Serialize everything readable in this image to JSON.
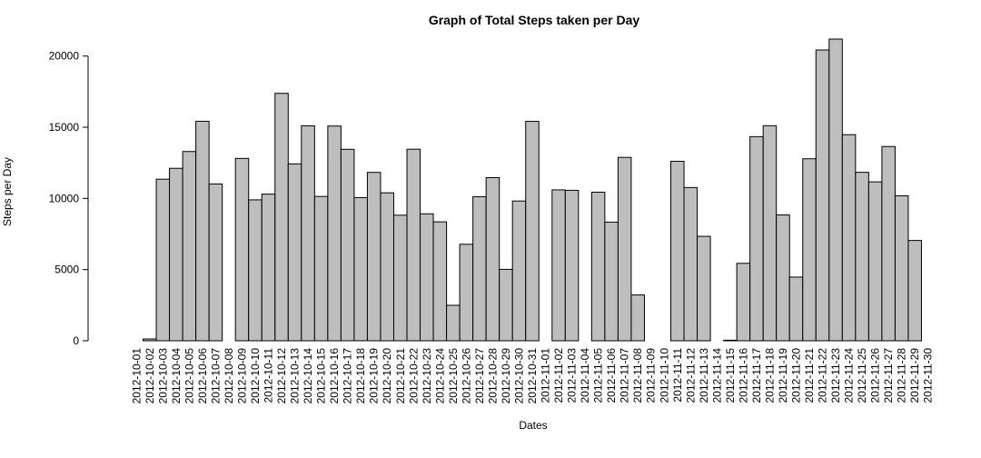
{
  "chart_data": {
    "type": "bar",
    "title": "Graph of Total Steps taken per Day",
    "xlabel": "Dates",
    "ylabel": "Steps per Day",
    "ylim": [
      0,
      21194
    ],
    "yticks": [
      0,
      5000,
      10000,
      15000,
      20000
    ],
    "grid": false,
    "categories": [
      "2012-10-01",
      "2012-10-02",
      "2012-10-03",
      "2012-10-04",
      "2012-10-05",
      "2012-10-06",
      "2012-10-07",
      "2012-10-08",
      "2012-10-09",
      "2012-10-10",
      "2012-10-11",
      "2012-10-12",
      "2012-10-13",
      "2012-10-14",
      "2012-10-15",
      "2012-10-16",
      "2012-10-17",
      "2012-10-18",
      "2012-10-19",
      "2012-10-20",
      "2012-10-21",
      "2012-10-22",
      "2012-10-23",
      "2012-10-24",
      "2012-10-25",
      "2012-10-26",
      "2012-10-27",
      "2012-10-28",
      "2012-10-29",
      "2012-10-30",
      "2012-10-31",
      "2012-11-01",
      "2012-11-02",
      "2012-11-03",
      "2012-11-04",
      "2012-11-05",
      "2012-11-06",
      "2012-11-07",
      "2012-11-08",
      "2012-11-09",
      "2012-11-10",
      "2012-11-11",
      "2012-11-12",
      "2012-11-13",
      "2012-11-14",
      "2012-11-15",
      "2012-11-16",
      "2012-11-17",
      "2012-11-18",
      "2012-11-19",
      "2012-11-20",
      "2012-11-21",
      "2012-11-22",
      "2012-11-23",
      "2012-11-24",
      "2012-11-25",
      "2012-11-26",
      "2012-11-27",
      "2012-11-28",
      "2012-11-29",
      "2012-11-30"
    ],
    "values": [
      null,
      126,
      11352,
      12116,
      13294,
      15420,
      11015,
      null,
      12811,
      9900,
      10304,
      17382,
      12426,
      15098,
      10139,
      15084,
      13452,
      10056,
      11829,
      10395,
      8821,
      13460,
      8918,
      8355,
      2492,
      6778,
      10119,
      11458,
      5018,
      9819,
      15414,
      null,
      10600,
      10571,
      null,
      10439,
      8334,
      12883,
      3219,
      null,
      null,
      12608,
      10765,
      7336,
      null,
      41,
      5441,
      14339,
      15110,
      8841,
      4472,
      12787,
      20427,
      21194,
      14478,
      11834,
      11162,
      13646,
      10183,
      7047,
      null
    ]
  }
}
